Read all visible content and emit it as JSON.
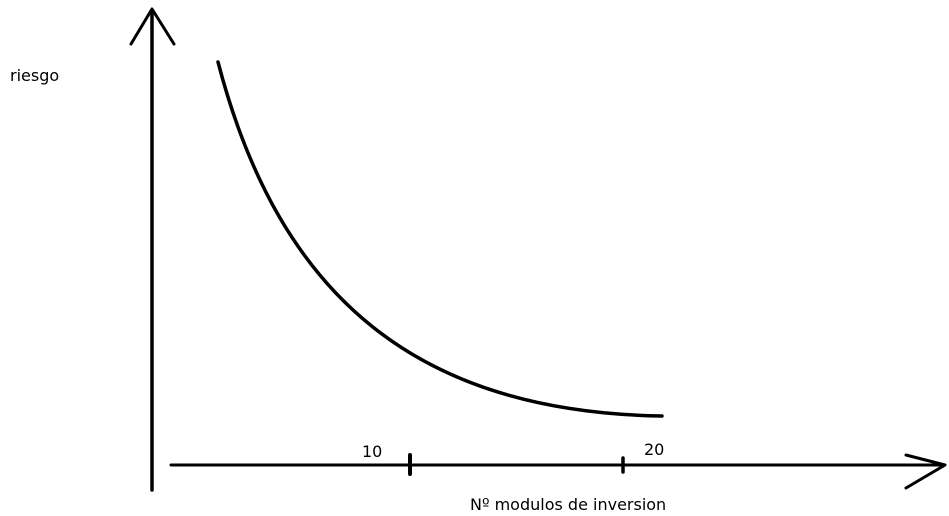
{
  "axis_labels": {
    "y": "riesgo",
    "x": "Nº modulos de inversion"
  },
  "x_tick_labels": [
    "10",
    "20"
  ]
}
